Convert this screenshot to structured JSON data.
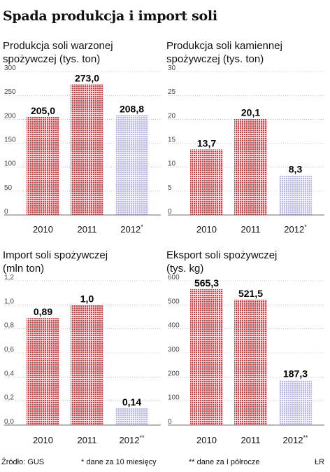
{
  "title": "Spada produkcja i import soli",
  "colors": {
    "solid": "#e03a3e",
    "estimate": "#b7b7ee"
  },
  "chart_data": [
    {
      "type": "bar",
      "title_lines": [
        "Produkcja soli warzonej",
        "spożywczej (tys. ton)"
      ],
      "categories": [
        "2010",
        "2011",
        "2012"
      ],
      "category_marks": [
        "",
        "",
        "*"
      ],
      "values": [
        205.0,
        273.0,
        208.8
      ],
      "value_labels": [
        "205,0",
        "273,0",
        "208,8"
      ],
      "estimate": [
        false,
        false,
        true
      ],
      "ylim": [
        0,
        300
      ],
      "ticks": [
        0,
        50,
        100,
        150,
        200,
        250,
        300
      ],
      "tick_labels": [
        "0",
        "50",
        "100",
        "150",
        "200",
        "250",
        "300"
      ]
    },
    {
      "type": "bar",
      "title_lines": [
        "Produkcja soli kamiennej",
        "spożywczej (tys. ton)"
      ],
      "categories": [
        "2010",
        "2011",
        "2012"
      ],
      "category_marks": [
        "",
        "",
        "*"
      ],
      "values": [
        13.7,
        20.1,
        8.3
      ],
      "value_labels": [
        "13,7",
        "20,1",
        "8,3"
      ],
      "estimate": [
        false,
        false,
        true
      ],
      "ylim": [
        0,
        30
      ],
      "ticks": [
        0,
        5,
        10,
        15,
        20,
        25,
        30
      ],
      "tick_labels": [
        "0",
        "5",
        "10",
        "15",
        "20",
        "25",
        "30"
      ]
    },
    {
      "type": "bar",
      "title_lines": [
        "Import soli spożywczej",
        "(mln ton)"
      ],
      "categories": [
        "2010",
        "2011",
        "2012"
      ],
      "category_marks": [
        "",
        "",
        "**"
      ],
      "values": [
        0.89,
        1.0,
        0.14
      ],
      "value_labels": [
        "0,89",
        "1,0",
        "0,14"
      ],
      "estimate": [
        false,
        false,
        true
      ],
      "ylim": [
        0,
        1.2
      ],
      "ticks": [
        0,
        0.2,
        0.4,
        0.6,
        0.8,
        1.0,
        1.2
      ],
      "tick_labels": [
        "0,0",
        "0,2",
        "0,4",
        "0,6",
        "0,8",
        "1,0",
        "1,2"
      ]
    },
    {
      "type": "bar",
      "title_lines": [
        "Eksport soli spożywczej",
        "(tys. kg)"
      ],
      "categories": [
        "2010",
        "2011",
        "2012"
      ],
      "category_marks": [
        "",
        "",
        "**"
      ],
      "values": [
        565.3,
        521.5,
        187.3
      ],
      "value_labels": [
        "565,3",
        "521,5",
        "187,3"
      ],
      "estimate": [
        false,
        false,
        true
      ],
      "ylim": [
        0,
        600
      ],
      "ticks": [
        0,
        100,
        200,
        300,
        400,
        500,
        600
      ],
      "tick_labels": [
        "0",
        "100",
        "200",
        "300",
        "400",
        "500",
        "600"
      ]
    }
  ],
  "footer": {
    "source": "Źródło: GUS",
    "note1": "* dane za 10 miesięcy",
    "note2": "** dane za I półrocze",
    "credit": "ŁR"
  }
}
